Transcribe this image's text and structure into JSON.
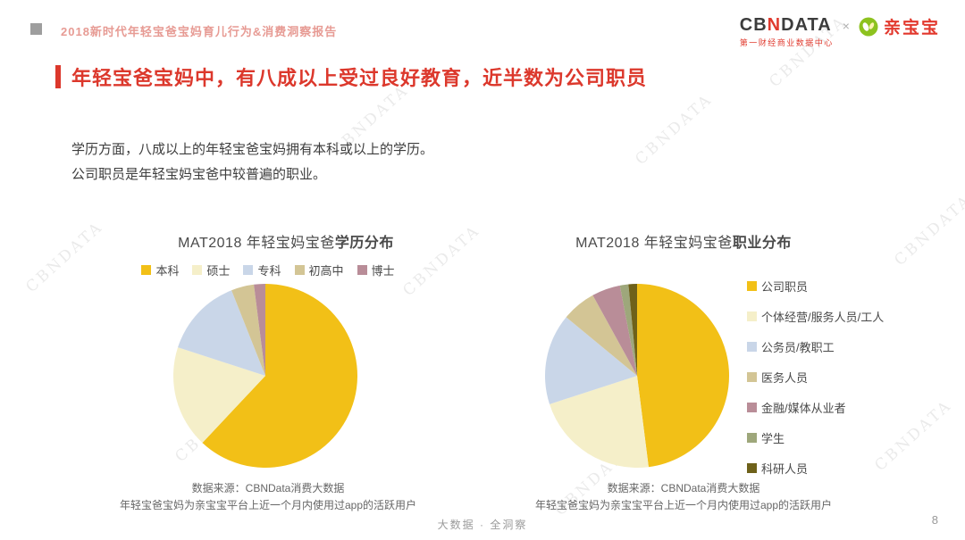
{
  "header": {
    "report_title": "2018新时代年轻宝爸宝妈育儿行为&消费洞察报告",
    "logo_cb": "CB",
    "logo_n": "N",
    "logo_data": "DATA",
    "logo_sub": "第一财经商业数据中心",
    "logo_x": "×",
    "logo_qinbaobao": "亲宝宝"
  },
  "title": "年轻宝爸宝妈中，有八成以上受过良好教育，近半数为公司职员",
  "body": {
    "line1": "学历方面，八成以上的年轻宝爸宝妈拥有本科或以上的学历。",
    "line2": "公司职员是年轻宝妈宝爸中较普遍的职业。"
  },
  "colors": {
    "accent_red": "#dc382c",
    "header_title_pink": "#e79b94"
  },
  "chart_data": [
    {
      "type": "pie",
      "title": "MAT2018 年轻宝妈宝爸学历分布",
      "title_prefix": "MAT2018 年轻宝妈宝爸",
      "title_bold": "学历分布",
      "labels": [
        "本科",
        "硕士",
        "专科",
        "初高中",
        "博士"
      ],
      "values": [
        62,
        18,
        14,
        4,
        2
      ],
      "colors": [
        "#f2c017",
        "#f5efc9",
        "#c9d6e8",
        "#d3c595",
        "#b98d98"
      ],
      "legend_position": "top",
      "start_angle_deg": 0,
      "direction": "clockwise",
      "source1": "数据来源：CBNData消费大数据",
      "source2": "年轻宝爸宝妈为亲宝宝平台上近一个月内使用过app的活跃用户"
    },
    {
      "type": "pie",
      "title": "MAT2018 年轻宝妈宝爸职业分布",
      "title_prefix": "MAT2018 年轻宝妈宝爸",
      "title_bold": "职业分布",
      "labels": [
        "公司职员",
        "个体经营/服务人员/工人",
        "公务员/教职工",
        "医务人员",
        "金融/媒体从业者",
        "学生",
        "科研人员"
      ],
      "values": [
        48,
        22,
        16,
        6,
        5,
        1.5,
        1.5
      ],
      "colors": [
        "#f2c017",
        "#f5efc9",
        "#c9d6e8",
        "#d3c595",
        "#b98d98",
        "#9ea77b",
        "#6e611a"
      ],
      "legend_position": "right",
      "start_angle_deg": 0,
      "direction": "clockwise",
      "source1": "数据来源：CBNData消费大数据",
      "source2": "年轻宝爸宝妈为亲宝宝平台上近一个月内使用过app的活跃用户"
    }
  ],
  "footer": {
    "center": "大数据 · 全洞察",
    "page": "8"
  },
  "watermark": "CBNDATA"
}
